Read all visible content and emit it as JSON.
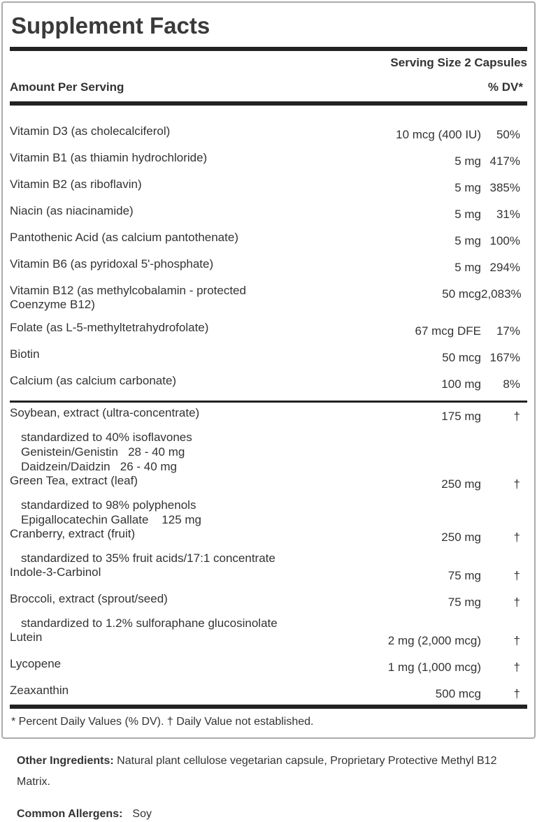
{
  "label": {
    "title": "Supplement Facts",
    "serving_size": "Serving Size 2 Capsules",
    "columns": {
      "amount_header": "Amount Per Serving",
      "dv_header": "% DV*"
    },
    "vitamin_rows": [
      {
        "name": "Vitamin D3 (as cholecalciferol)",
        "amount": "10 mcg (400 IU)",
        "dv": "50%"
      },
      {
        "name": "Vitamin B1 (as thiamin hydrochloride)",
        "amount": "5 mg",
        "dv": "417%"
      },
      {
        "name": "Vitamin B2 (as riboflavin)",
        "amount": "5 mg",
        "dv": "385%"
      },
      {
        "name": "Niacin (as niacinamide)",
        "amount": "5 mg",
        "dv": "31%"
      },
      {
        "name": "Pantothenic Acid (as calcium pantothenate)",
        "amount": "5 mg",
        "dv": "100%"
      },
      {
        "name": "Vitamin B6 (as pyridoxal 5'-phosphate)",
        "amount": "5 mg",
        "dv": "294%"
      },
      {
        "name": "Vitamin B12 (as methylcobalamin - protected Coenzyme B12)",
        "amount": "50 mcg",
        "dv": "2,083%"
      },
      {
        "name": "Folate (as L-5-methyltetrahydrofolate)",
        "amount": "67 mcg DFE",
        "dv": "17%"
      },
      {
        "name": "Biotin",
        "amount": "50 mcg",
        "dv": "167%"
      },
      {
        "name": "Calcium (as calcium carbonate)",
        "amount": "100 mg",
        "dv": "8%"
      }
    ],
    "botanical_rows": [
      {
        "name": "Soybean, extract (ultra-concentrate)",
        "amount": "175 mg",
        "dv": "†",
        "subs": [
          "standardized to 40% isoflavones",
          "Genistein/Genistin   28 - 40 mg",
          "Daidzein/Daidzin   26 - 40 mg"
        ]
      },
      {
        "name": "Green Tea, extract (leaf)",
        "amount": "250 mg",
        "dv": "†",
        "subs": [
          "standardized to 98% polyphenols",
          "Epigallocatechin Gallate    125 mg"
        ]
      },
      {
        "name": "Cranberry, extract (fruit)",
        "amount": "250 mg",
        "dv": "†",
        "subs": [
          "standardized to 35% fruit acids/17:1 concentrate"
        ]
      },
      {
        "name": "Indole-3-Carbinol",
        "amount": "75 mg",
        "dv": "†"
      },
      {
        "name": "Broccoli, extract (sprout/seed)",
        "amount": "75 mg",
        "dv": "†",
        "subs": [
          "standardized to 1.2% sulforaphane glucosinolate"
        ]
      },
      {
        "name": "Lutein",
        "amount": "2 mg (2,000 mcg)",
        "dv": "†"
      },
      {
        "name": "Lycopene",
        "amount": "1 mg (1,000 mcg)",
        "dv": "†"
      },
      {
        "name": "Zeaxanthin",
        "amount": "500 mcg",
        "dv": "†"
      }
    ],
    "footnote": "* Percent Daily Values (% DV). † Daily Value not established."
  },
  "below": {
    "other_ingredients_label": "Other Ingredients:",
    "other_ingredients_text": " Natural plant cellulose vegetarian capsule, Proprietary Protective Methyl B12 Matrix.",
    "allergens_label": "Common Allergens:",
    "allergens_value": "Soy"
  },
  "colors": {
    "text": "#333333",
    "title": "#3a3a3a",
    "rule_bar": "#222222",
    "box_border": "#ababab"
  }
}
